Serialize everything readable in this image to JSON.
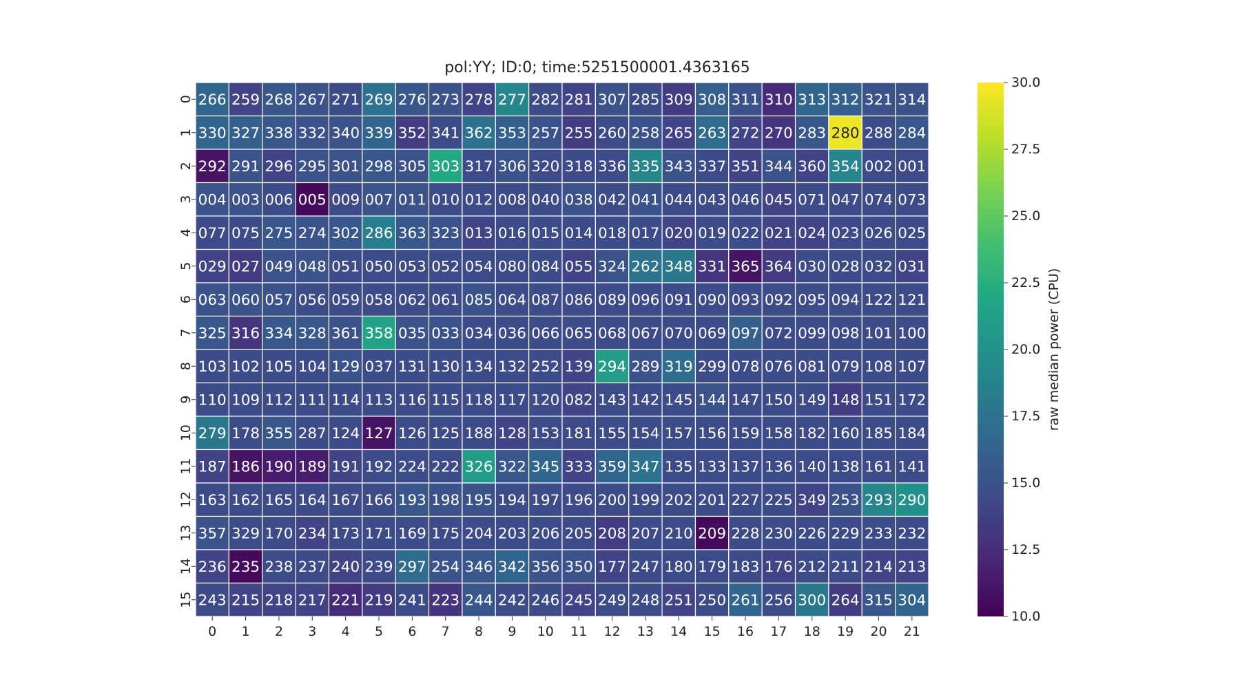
{
  "chart_data": {
    "type": "heatmap",
    "title": "pol:YY; ID:0; time:5251500001.4363165",
    "x_ticks": [
      "0",
      "1",
      "2",
      "3",
      "4",
      "5",
      "6",
      "7",
      "8",
      "9",
      "10",
      "11",
      "12",
      "13",
      "14",
      "15",
      "16",
      "17",
      "18",
      "19",
      "20",
      "21"
    ],
    "y_ticks": [
      "0",
      "1",
      "2",
      "3",
      "4",
      "5",
      "6",
      "7",
      "8",
      "9",
      "10",
      "11",
      "12",
      "13",
      "14",
      "15"
    ],
    "annotations": [
      [
        "266",
        "259",
        "268",
        "267",
        "271",
        "269",
        "276",
        "273",
        "278",
        "277",
        "282",
        "281",
        "307",
        "285",
        "309",
        "308",
        "311",
        "310",
        "313",
        "312",
        "321",
        "314"
      ],
      [
        "330",
        "327",
        "338",
        "332",
        "340",
        "339",
        "352",
        "341",
        "362",
        "353",
        "257",
        "255",
        "260",
        "258",
        "265",
        "263",
        "272",
        "270",
        "283",
        "280",
        "288",
        "284"
      ],
      [
        "292",
        "291",
        "296",
        "295",
        "301",
        "298",
        "305",
        "303",
        "317",
        "306",
        "320",
        "318",
        "336",
        "335",
        "343",
        "337",
        "351",
        "344",
        "360",
        "354",
        "002",
        "001"
      ],
      [
        "004",
        "003",
        "006",
        "005",
        "009",
        "007",
        "011",
        "010",
        "012",
        "008",
        "040",
        "038",
        "042",
        "041",
        "044",
        "043",
        "046",
        "045",
        "071",
        "047",
        "074",
        "073"
      ],
      [
        "077",
        "075",
        "275",
        "274",
        "302",
        "286",
        "363",
        "323",
        "013",
        "016",
        "015",
        "014",
        "018",
        "017",
        "020",
        "019",
        "022",
        "021",
        "024",
        "023",
        "026",
        "025"
      ],
      [
        "029",
        "027",
        "049",
        "048",
        "051",
        "050",
        "053",
        "052",
        "054",
        "080",
        "084",
        "055",
        "324",
        "262",
        "348",
        "331",
        "365",
        "364",
        "030",
        "028",
        "032",
        "031"
      ],
      [
        "063",
        "060",
        "057",
        "056",
        "059",
        "058",
        "062",
        "061",
        "085",
        "064",
        "087",
        "086",
        "089",
        "096",
        "091",
        "090",
        "093",
        "092",
        "095",
        "094",
        "122",
        "121"
      ],
      [
        "325",
        "316",
        "334",
        "328",
        "361",
        "358",
        "035",
        "033",
        "034",
        "036",
        "066",
        "065",
        "068",
        "067",
        "070",
        "069",
        "097",
        "072",
        "099",
        "098",
        "101",
        "100"
      ],
      [
        "103",
        "102",
        "105",
        "104",
        "129",
        "037",
        "131",
        "130",
        "134",
        "132",
        "252",
        "139",
        "294",
        "289",
        "319",
        "299",
        "078",
        "076",
        "081",
        "079",
        "108",
        "107"
      ],
      [
        "110",
        "109",
        "112",
        "111",
        "114",
        "113",
        "116",
        "115",
        "118",
        "117",
        "120",
        "082",
        "143",
        "142",
        "145",
        "144",
        "147",
        "150",
        "149",
        "148",
        "151",
        "172"
      ],
      [
        "279",
        "178",
        "355",
        "287",
        "124",
        "127",
        "126",
        "125",
        "188",
        "128",
        "153",
        "181",
        "155",
        "154",
        "157",
        "156",
        "159",
        "158",
        "182",
        "160",
        "185",
        "184"
      ],
      [
        "187",
        "186",
        "190",
        "189",
        "191",
        "192",
        "224",
        "222",
        "326",
        "322",
        "345",
        "333",
        "359",
        "347",
        "135",
        "133",
        "137",
        "136",
        "140",
        "138",
        "161",
        "141"
      ],
      [
        "163",
        "162",
        "165",
        "164",
        "167",
        "166",
        "193",
        "198",
        "195",
        "194",
        "197",
        "196",
        "200",
        "199",
        "202",
        "201",
        "227",
        "225",
        "349",
        "253",
        "293",
        "290"
      ],
      [
        "357",
        "329",
        "170",
        "234",
        "173",
        "171",
        "169",
        "175",
        "204",
        "203",
        "206",
        "205",
        "208",
        "207",
        "210",
        "209",
        "228",
        "230",
        "226",
        "229",
        "233",
        "232"
      ],
      [
        "236",
        "235",
        "238",
        "237",
        "240",
        "239",
        "297",
        "254",
        "346",
        "342",
        "356",
        "350",
        "177",
        "247",
        "180",
        "179",
        "183",
        "176",
        "212",
        "211",
        "214",
        "213"
      ],
      [
        "243",
        "215",
        "218",
        "217",
        "221",
        "219",
        "241",
        "223",
        "244",
        "242",
        "246",
        "245",
        "249",
        "248",
        "251",
        "250",
        "261",
        "256",
        "300",
        "264",
        "315",
        "304"
      ]
    ],
    "values": [
      [
        16.5,
        14.0,
        15.5,
        15.0,
        14.5,
        17.5,
        15.5,
        15.0,
        14.0,
        19.0,
        14.5,
        14.0,
        15.0,
        14.5,
        13.5,
        16.0,
        15.0,
        12.5,
        16.5,
        16.0,
        15.0,
        15.0
      ],
      [
        16.5,
        16.0,
        15.5,
        15.0,
        15.0,
        16.5,
        13.5,
        14.5,
        17.5,
        16.0,
        15.0,
        13.5,
        14.5,
        15.0,
        14.0,
        17.0,
        14.0,
        13.0,
        15.5,
        29.5,
        14.5,
        15.5
      ],
      [
        11.0,
        15.0,
        14.0,
        15.0,
        15.0,
        15.5,
        15.0,
        22.0,
        14.5,
        15.0,
        14.5,
        14.5,
        14.5,
        19.0,
        15.0,
        14.5,
        14.0,
        15.0,
        14.0,
        19.0,
        14.5,
        14.5
      ],
      [
        15.0,
        15.0,
        14.5,
        10.5,
        14.5,
        15.0,
        15.0,
        14.5,
        14.5,
        14.5,
        14.5,
        15.0,
        14.5,
        15.0,
        14.5,
        14.5,
        14.5,
        14.0,
        14.5,
        14.5,
        14.5,
        14.5
      ],
      [
        14.5,
        14.5,
        15.5,
        15.0,
        15.5,
        18.5,
        15.5,
        15.0,
        14.0,
        14.5,
        14.5,
        14.5,
        14.5,
        14.5,
        14.0,
        14.5,
        14.5,
        14.0,
        14.0,
        14.5,
        14.5,
        14.5
      ],
      [
        14.0,
        13.5,
        15.0,
        15.0,
        14.5,
        14.5,
        14.5,
        14.5,
        14.5,
        14.5,
        14.5,
        14.0,
        15.0,
        17.5,
        18.0,
        13.0,
        11.0,
        13.5,
        14.5,
        14.5,
        14.5,
        14.0
      ],
      [
        15.0,
        15.0,
        15.0,
        14.5,
        14.5,
        14.5,
        14.5,
        14.5,
        15.0,
        14.5,
        14.5,
        14.5,
        14.5,
        14.5,
        14.5,
        14.5,
        14.5,
        14.5,
        14.5,
        14.5,
        14.5,
        14.5
      ],
      [
        15.5,
        13.0,
        15.5,
        15.5,
        15.0,
        21.5,
        15.0,
        15.0,
        14.5,
        14.5,
        14.5,
        14.5,
        14.5,
        14.5,
        14.5,
        14.5,
        16.0,
        14.5,
        14.5,
        14.5,
        14.5,
        14.5
      ],
      [
        14.5,
        14.5,
        14.5,
        14.5,
        15.0,
        14.5,
        14.5,
        14.5,
        14.5,
        14.5,
        14.5,
        14.0,
        21.0,
        15.0,
        17.0,
        14.5,
        14.5,
        14.5,
        14.5,
        14.5,
        14.5,
        14.5
      ],
      [
        14.5,
        14.5,
        14.5,
        14.5,
        14.5,
        14.5,
        14.5,
        14.5,
        14.5,
        14.5,
        14.5,
        14.0,
        14.5,
        14.5,
        14.5,
        15.0,
        14.5,
        14.5,
        14.5,
        13.5,
        14.5,
        14.5
      ],
      [
        18.0,
        14.5,
        15.5,
        14.5,
        14.5,
        11.0,
        14.5,
        14.5,
        14.5,
        14.0,
        14.5,
        14.5,
        14.5,
        14.5,
        14.5,
        14.5,
        14.5,
        14.5,
        14.5,
        14.5,
        14.5,
        14.5
      ],
      [
        14.0,
        11.0,
        11.5,
        11.5,
        14.0,
        14.5,
        14.5,
        14.5,
        21.0,
        15.5,
        16.5,
        14.0,
        16.5,
        17.5,
        14.5,
        14.5,
        14.5,
        14.5,
        14.5,
        14.5,
        14.5,
        14.5
      ],
      [
        14.5,
        14.5,
        14.5,
        14.5,
        14.5,
        14.5,
        15.5,
        15.0,
        15.0,
        14.5,
        14.5,
        14.5,
        14.5,
        14.5,
        14.5,
        14.5,
        14.5,
        14.5,
        14.0,
        15.0,
        19.0,
        20.0
      ],
      [
        15.0,
        14.5,
        14.5,
        14.0,
        14.5,
        14.5,
        14.5,
        14.5,
        14.5,
        14.5,
        14.5,
        14.5,
        13.5,
        14.5,
        14.5,
        10.5,
        14.5,
        14.5,
        14.5,
        14.5,
        14.5,
        14.5
      ],
      [
        14.0,
        10.5,
        14.5,
        14.5,
        14.0,
        14.5,
        17.0,
        15.0,
        15.5,
        16.5,
        15.0,
        15.0,
        14.0,
        14.5,
        14.5,
        14.5,
        14.5,
        14.0,
        14.5,
        14.5,
        14.0,
        14.0
      ],
      [
        14.5,
        14.0,
        14.0,
        14.0,
        12.5,
        13.5,
        14.5,
        13.0,
        15.5,
        14.5,
        14.5,
        14.0,
        14.5,
        14.5,
        14.0,
        14.5,
        16.5,
        14.5,
        18.0,
        13.5,
        15.5,
        16.5
      ]
    ],
    "colorbar": {
      "label": "raw median power (CPU)",
      "min": 10.0,
      "max": 30.0,
      "ticks": [
        "10.0",
        "12.5",
        "15.0",
        "17.5",
        "20.0",
        "22.5",
        "25.0",
        "27.5",
        "30.0"
      ],
      "colormap": "viridis"
    }
  }
}
